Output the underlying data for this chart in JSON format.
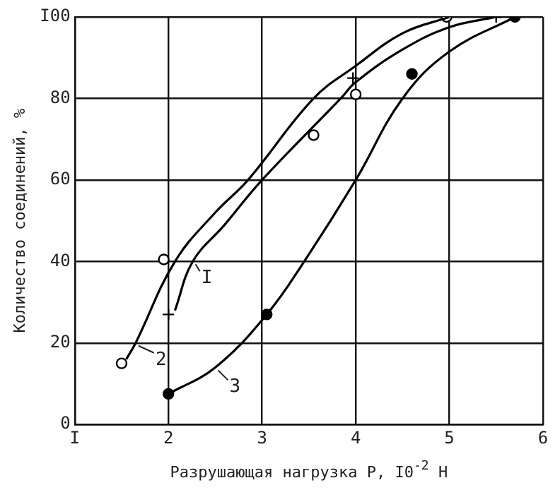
{
  "chart_data": {
    "type": "line",
    "xlabel": "Разрушающая нагрузка P, I0$^{-2}$ H",
    "ylabel": "Количество соединений, %",
    "xlim": [
      1,
      6
    ],
    "xticks": [
      {
        "value": 1,
        "label": "I"
      },
      2,
      3,
      4,
      5,
      6
    ],
    "ylim": [
      0,
      100
    ],
    "yticks": [
      0,
      20,
      40,
      60,
      {
        "value": 80,
        "label": "80"
      },
      {
        "value": 100,
        "label": "I00"
      }
    ],
    "grid": true,
    "legend": false,
    "series": [
      {
        "type": "line",
        "name": "2",
        "color": "#000000",
        "marker": "none",
        "line_style": "solid",
        "x": [
          1.55,
          1.65,
          2.07,
          2.5,
          2.85,
          3.55,
          4.0,
          4.5,
          5.0
        ],
        "values": [
          16,
          20,
          40,
          52,
          60,
          80,
          88,
          96,
          100
        ]
      },
      {
        "type": "line",
        "name": "I",
        "color": "#000000",
        "marker": "none",
        "line_style": "solid",
        "x": [
          2.07,
          2.26,
          2.6,
          3.0,
          3.84,
          4.0,
          4.5,
          5.0,
          5.5
        ],
        "values": [
          28,
          40,
          49,
          60,
          80,
          84,
          92,
          97.5,
          100
        ]
      },
      {
        "type": "line",
        "name": "3",
        "color": "#000000",
        "marker": "none",
        "line_style": "solid",
        "x": [
          2.0,
          2.5,
          3.05,
          3.45,
          4.0,
          4.5,
          5.0,
          5.7
        ],
        "values": [
          7.5,
          14,
          27,
          40,
          60,
          80,
          91.5,
          100
        ]
      },
      {
        "type": "scatter",
        "color": "#ffffff",
        "marker": "circle",
        "x": [
          1.5,
          1.95,
          3.55,
          4.0,
          4.97
        ],
        "values": [
          15,
          40.5,
          71,
          81,
          100
        ]
      },
      {
        "type": "scatter",
        "color": "#000000",
        "marker": "cross",
        "x": [
          2.0,
          3.97,
          5.5
        ],
        "values": [
          27,
          85,
          100
        ]
      },
      {
        "type": "scatter",
        "color": "#000000",
        "marker": "circle",
        "x": [
          2.0,
          3.05,
          4.6,
          5.7
        ],
        "values": [
          7.5,
          27,
          86,
          100
        ]
      }
    ]
  }
}
